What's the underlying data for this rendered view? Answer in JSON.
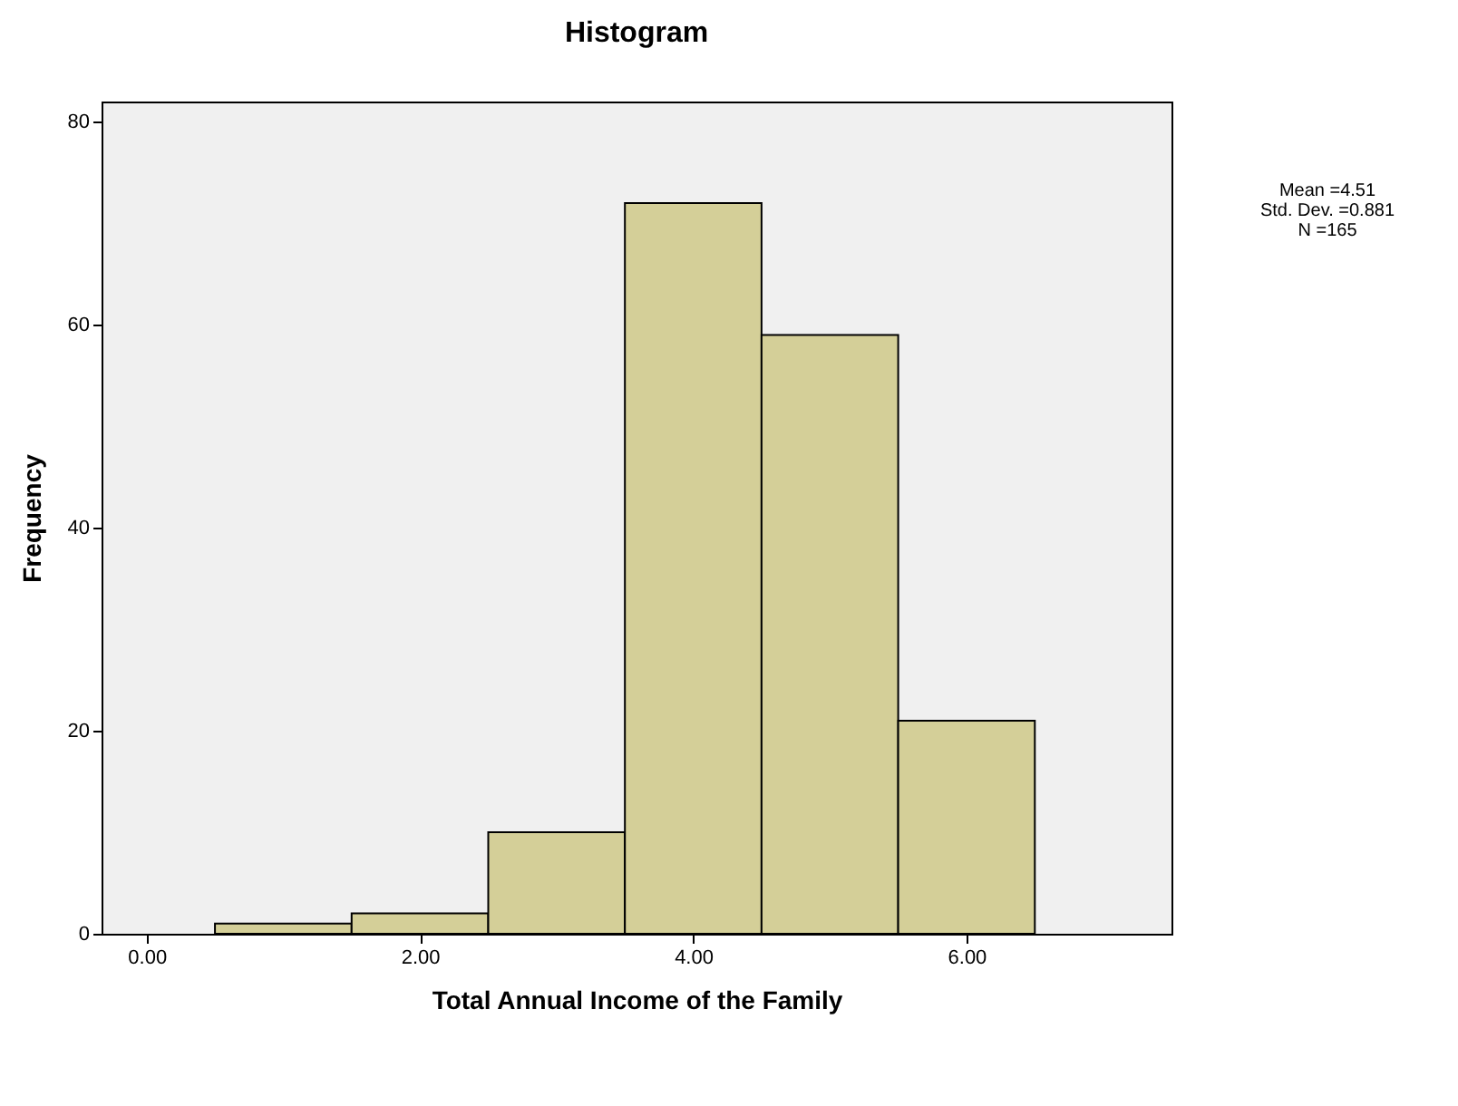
{
  "chart_data": {
    "type": "histogram",
    "title": "Histogram",
    "xlabel": "Total Annual Income of the Family",
    "ylabel": "Frequency",
    "bins": [
      0.5,
      1.5,
      2.5,
      3.5,
      4.5,
      5.5,
      6.5
    ],
    "values": [
      1,
      2,
      10,
      72,
      59,
      21
    ],
    "color": "#d4cf98",
    "xlim": [
      -0.33,
      7.5
    ],
    "ylim": [
      0,
      82
    ],
    "xticks": [
      {
        "value": 0,
        "label": "0.00"
      },
      {
        "value": 2,
        "label": "2.00"
      },
      {
        "value": 4,
        "label": "4.00"
      },
      {
        "value": 6,
        "label": "6.00"
      }
    ],
    "yticks": [
      0,
      20,
      40,
      60,
      80
    ],
    "grid": false,
    "annotations": [
      "Mean =4.51",
      "Std. Dev. =0.881",
      "N =165"
    ]
  }
}
